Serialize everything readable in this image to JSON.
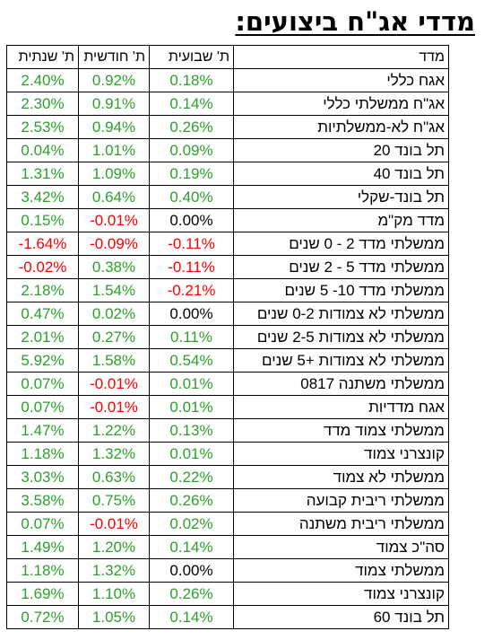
{
  "title": "מדדי אג\"ח ביצועים:",
  "headers": {
    "name": "מדד",
    "weekly": "ת' שבועית",
    "monthly": "ת' חודשית",
    "yearly": "ת' שנתית"
  },
  "colors": {
    "positive": "#2ca02c",
    "negative": "#ff0000",
    "zero": "#000000"
  },
  "rows": [
    {
      "name": "אגח כללי",
      "weekly": "0.18%",
      "monthly": "0.92%",
      "yearly": "2.40%"
    },
    {
      "name": "אג\"ח ממשלתי כללי",
      "weekly": "0.14%",
      "monthly": "0.91%",
      "yearly": "2.30%"
    },
    {
      "name": "אג\"ח לא-ממשלתיות",
      "weekly": "0.26%",
      "monthly": "0.94%",
      "yearly": "2.53%"
    },
    {
      "name": "תל בונד 20",
      "weekly": "0.09%",
      "monthly": "1.01%",
      "yearly": "0.04%"
    },
    {
      "name": "תל בונד 40",
      "weekly": "0.19%",
      "monthly": "1.09%",
      "yearly": "1.31%"
    },
    {
      "name": "תל בונד-שקלי",
      "weekly": "0.40%",
      "monthly": "0.64%",
      "yearly": "3.42%"
    },
    {
      "name": "מדד מק\"מ",
      "weekly": "0.00%",
      "monthly": "-0.01%",
      "yearly": "0.15%"
    },
    {
      "name": "ממשלתי מדד 2 - 0 שנים",
      "weekly": "-0.11%",
      "monthly": "-0.09%",
      "yearly": "-1.64%"
    },
    {
      "name": "ממשלתי מדד 5 - 2 שנים",
      "weekly": "-0.11%",
      "monthly": "0.38%",
      "yearly": "-0.02%"
    },
    {
      "name": "ממשלתי מדד 10- 5 שנים",
      "weekly": "-0.21%",
      "monthly": "1.54%",
      "yearly": "2.18%"
    },
    {
      "name": "ממשלתי לא צמודות 0-2 שנים",
      "weekly": "0.00%",
      "monthly": "0.02%",
      "yearly": "0.47%"
    },
    {
      "name": "ממשלתי לא צמודות 2-5 שנים",
      "weekly": "0.11%",
      "monthly": "0.27%",
      "yearly": "2.01%"
    },
    {
      "name": "ממשלתי לא צמודות +5 שנים",
      "weekly": "0.54%",
      "monthly": "1.58%",
      "yearly": "5.92%"
    },
    {
      "name": "ממשלתי משתנה 0817",
      "weekly": "0.01%",
      "monthly": "-0.01%",
      "yearly": "0.07%"
    },
    {
      "name": "אגח מדדיות",
      "weekly": "0.01%",
      "monthly": "-0.01%",
      "yearly": "0.07%"
    },
    {
      "name": "ממשלתי צמוד מדד",
      "weekly": "0.13%",
      "monthly": "1.22%",
      "yearly": "1.47%"
    },
    {
      "name": "קונצרני צמוד",
      "weekly": "0.01%",
      "monthly": "1.32%",
      "yearly": "1.18%"
    },
    {
      "name": "ממשלתי לא צמוד",
      "weekly": "0.22%",
      "monthly": "0.63%",
      "yearly": "3.03%"
    },
    {
      "name": "ממשלתי ריבית קבועה",
      "weekly": "0.26%",
      "monthly": "0.75%",
      "yearly": "3.58%"
    },
    {
      "name": "ממשלתי ריבית משתנה",
      "weekly": "0.02%",
      "monthly": "-0.01%",
      "yearly": "0.07%"
    },
    {
      "name": "סה\"כ צמוד",
      "weekly": "0.14%",
      "monthly": "1.20%",
      "yearly": "1.49%"
    },
    {
      "name": "ממשלתי צמוד",
      "weekly": "0.00%",
      "monthly": "1.32%",
      "yearly": "1.18%"
    },
    {
      "name": "קונצרני צמוד",
      "weekly": "0.26%",
      "monthly": "1.10%",
      "yearly": "1.69%"
    },
    {
      "name": "תל בונד 60",
      "weekly": "0.14%",
      "monthly": "1.05%",
      "yearly": "0.72%"
    }
  ]
}
